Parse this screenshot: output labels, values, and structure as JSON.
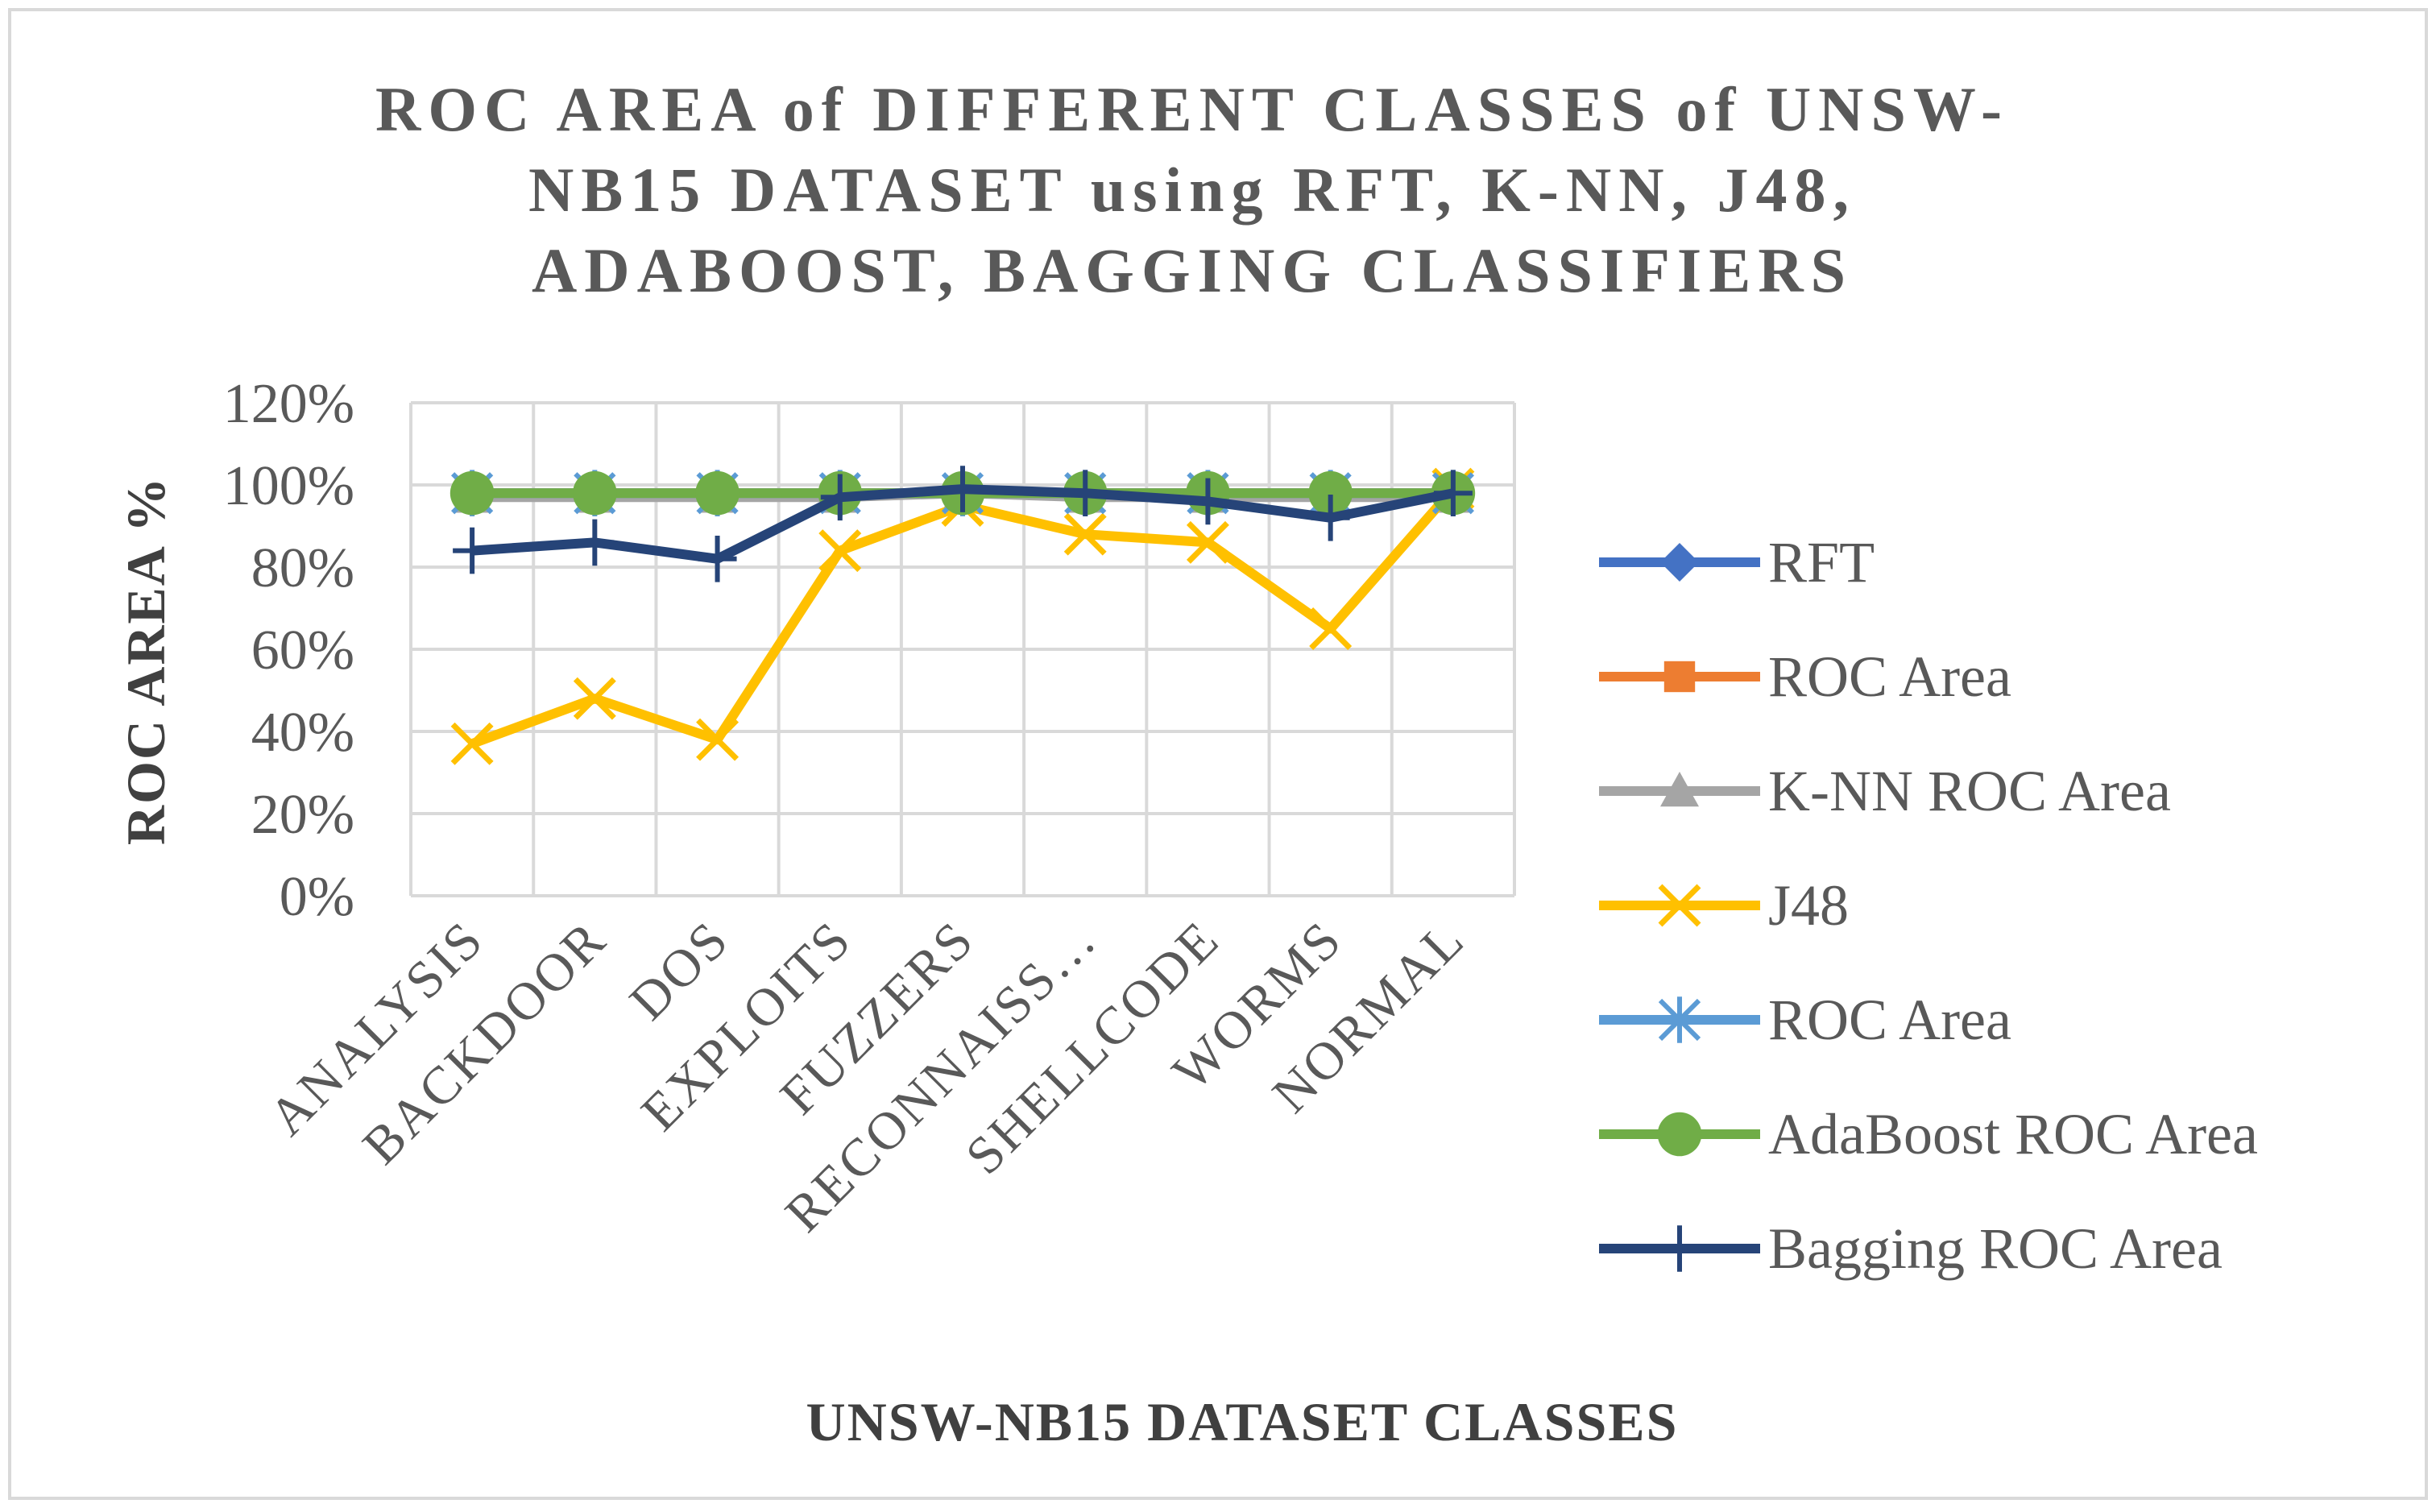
{
  "chart_data": {
    "type": "line",
    "title_lines": [
      "ROC AREA of DIFFERENT CLASSES of UNSW-",
      "NB15 DATASET using RFT, K-NN, J48,",
      "ADABOOST, BAGGING CLASSIFIERS"
    ],
    "xlabel": "UNSW-NB15 DATASET CLASSES",
    "ylabel": "ROC AREA %",
    "categories": [
      "ANALYSIS",
      "BACKDOOR",
      "DOS",
      "EXPLOITS",
      "FUZZERS",
      "RECONNAISS…",
      "SHELLCODE",
      "WORMS",
      "NORMAL"
    ],
    "yticks": [
      "0%",
      "20%",
      "40%",
      "60%",
      "80%",
      "100%",
      "120%"
    ],
    "ylim": [
      0,
      1.2
    ],
    "grid": true,
    "legend_position": "right",
    "series": [
      {
        "name": "RFT",
        "color": "#4472C4",
        "marker": "diamond",
        "values": [
          0.98,
          0.98,
          0.98,
          0.98,
          0.98,
          0.98,
          0.98,
          0.98,
          0.98
        ]
      },
      {
        "name": "ROC Area",
        "color": "#ED7D31",
        "marker": "square",
        "values": [
          0.98,
          0.98,
          0.98,
          0.98,
          0.98,
          0.98,
          0.98,
          0.98,
          0.98
        ]
      },
      {
        "name": "K-NN ROC Area",
        "color": "#A5A5A5",
        "marker": "triangle",
        "values": [
          0.97,
          0.97,
          0.97,
          0.97,
          0.98,
          0.97,
          0.97,
          0.97,
          0.97
        ]
      },
      {
        "name": "J48",
        "color": "#FFC000",
        "marker": "x",
        "values": [
          0.37,
          0.48,
          0.38,
          0.84,
          0.95,
          0.88,
          0.86,
          0.65,
          0.99
        ]
      },
      {
        "name": "ROC Area",
        "color": "#5B9BD5",
        "marker": "star",
        "values": [
          0.98,
          0.98,
          0.98,
          0.98,
          0.98,
          0.98,
          0.98,
          0.98,
          0.98
        ]
      },
      {
        "name": "AdaBoost ROC Area",
        "color": "#70AD47",
        "marker": "circle",
        "values": [
          0.98,
          0.98,
          0.98,
          0.98,
          0.98,
          0.98,
          0.98,
          0.98,
          0.98
        ]
      },
      {
        "name": "Bagging ROC Area",
        "color": "#264478",
        "marker": "plus",
        "values": [
          0.84,
          0.86,
          0.82,
          0.97,
          0.99,
          0.98,
          0.96,
          0.92,
          0.98
        ]
      }
    ]
  }
}
